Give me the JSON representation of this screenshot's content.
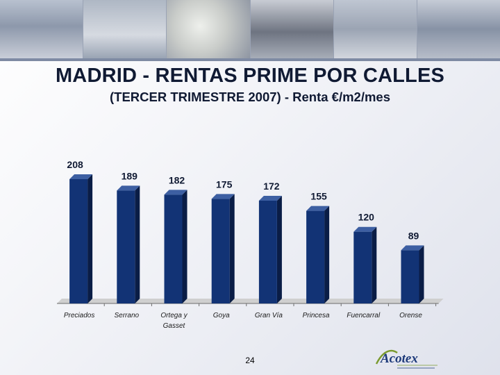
{
  "slide": {
    "title": "MADRID - RENTAS PRIME POR CALLES",
    "subtitle": "(TERCER TRIMESTRE 2007) - Renta €/m2/mes",
    "page_number": "24",
    "logo_text": "Acotex"
  },
  "colors": {
    "bar_front": "#123375",
    "bar_side": "#0a1d46",
    "bar_top": "#3d5fa2",
    "floor": "#cfcfcf",
    "text": "#101a33"
  },
  "chart_data": {
    "type": "bar",
    "title": "MADRID - RENTAS PRIME POR CALLES",
    "subtitle": "(TERCER TRIMESTRE 2007) - Renta €/m2/mes",
    "categories": [
      "Preciados",
      "Serrano",
      "Ortega y Gasset",
      "Goya",
      "Gran Vía",
      "Princesa",
      "Fuencarral",
      "Orense"
    ],
    "category_lines": [
      [
        "Preciados"
      ],
      [
        "Serrano"
      ],
      [
        "Ortega y",
        "Gasset"
      ],
      [
        "Goya"
      ],
      [
        "Gran Vía"
      ],
      [
        "Princesa"
      ],
      [
        "Fuencarral"
      ],
      [
        "Orense"
      ]
    ],
    "values": [
      208,
      189,
      182,
      175,
      172,
      155,
      120,
      89
    ],
    "data_labels": [
      "208",
      "189",
      "182",
      "175",
      "172",
      "155",
      "120",
      "89"
    ],
    "xlabel": "",
    "ylabel": "",
    "ylim": [
      0,
      215
    ],
    "grid": false,
    "legend": "none"
  }
}
